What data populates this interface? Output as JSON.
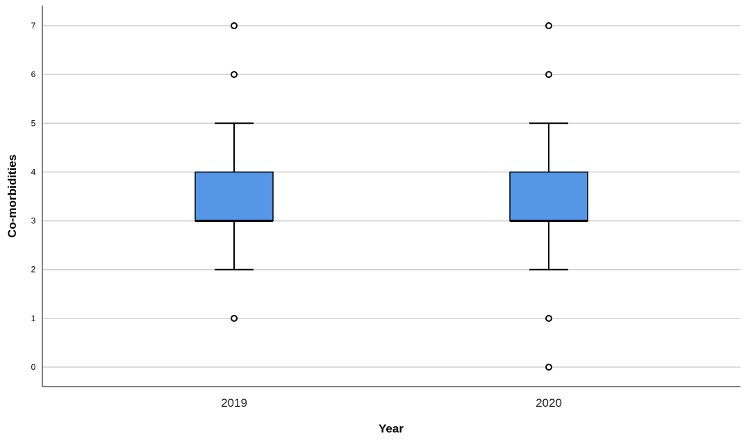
{
  "chart_data": {
    "type": "box",
    "xlabel": "Year",
    "ylabel": "Co-morbidities",
    "ylim": [
      0,
      7
    ],
    "yticks": [
      "0",
      "1",
      "2",
      "3",
      "4",
      "5",
      "6",
      "7"
    ],
    "grid": "horizontal",
    "box_color": "#5596e6",
    "categories": [
      "2019",
      "2020"
    ],
    "boxes": [
      {
        "category": "2019",
        "whisker_low": 2,
        "q1": 3,
        "median": 3,
        "q3": 4,
        "whisker_high": 5,
        "outliers": [
          1,
          6,
          7
        ]
      },
      {
        "category": "2020",
        "whisker_low": 2,
        "q1": 3,
        "median": 3,
        "q3": 4,
        "whisker_high": 5,
        "outliers": [
          0,
          1,
          6,
          7
        ]
      }
    ]
  }
}
